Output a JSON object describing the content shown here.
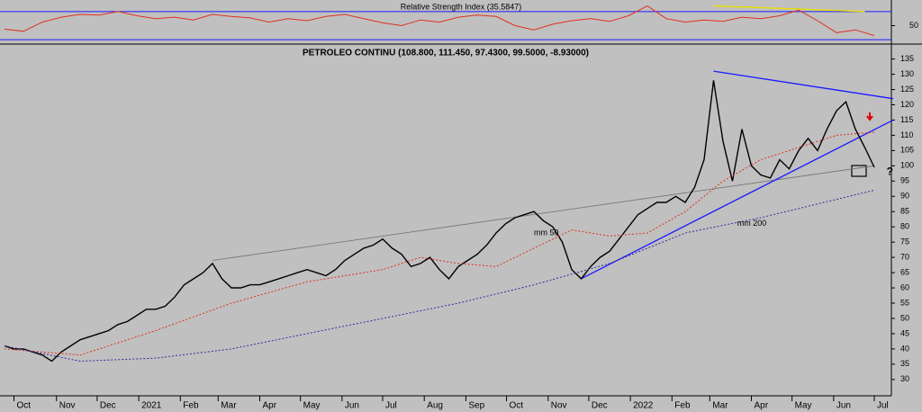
{
  "chart_data": {
    "type": "line",
    "title": "PETROLEO CONTINU (108.800, 111.450, 97.4300, 99.5000, -8.93000)",
    "xlim": [
      0,
      94
    ],
    "xticks": [
      {
        "value": 1,
        "label": "Oct"
      },
      {
        "value": 5.5,
        "label": "Nov"
      },
      {
        "value": 9.8,
        "label": "Dec"
      },
      {
        "value": 14.2,
        "label": "2021"
      },
      {
        "value": 18.6,
        "label": "Feb"
      },
      {
        "value": 22.6,
        "label": "Mar"
      },
      {
        "value": 27,
        "label": "Apr"
      },
      {
        "value": 31.3,
        "label": "May"
      },
      {
        "value": 35.7,
        "label": "Jun"
      },
      {
        "value": 40,
        "label": "Jul"
      },
      {
        "value": 44.4,
        "label": "Aug"
      },
      {
        "value": 48.8,
        "label": "Sep"
      },
      {
        "value": 53.1,
        "label": "Oct"
      },
      {
        "value": 57.5,
        "label": "Nov"
      },
      {
        "value": 61.8,
        "label": "Dec"
      },
      {
        "value": 66.2,
        "label": "2022"
      },
      {
        "value": 70.6,
        "label": "Feb"
      },
      {
        "value": 74.6,
        "label": "Mar"
      },
      {
        "value": 79,
        "label": "Apr"
      },
      {
        "value": 83.3,
        "label": "May"
      },
      {
        "value": 87.7,
        "label": "Jun"
      },
      {
        "value": 92,
        "label": "Jul"
      }
    ],
    "ylim": [
      27,
      139
    ],
    "yticks": [
      30,
      35,
      40,
      45,
      50,
      55,
      60,
      65,
      70,
      75,
      80,
      85,
      90,
      95,
      100,
      105,
      110,
      115,
      120,
      125,
      130,
      135
    ],
    "series": [
      {
        "name": "PETROLEO CONTINU",
        "color": "#000000",
        "style": "solid",
        "x": [
          0,
          1,
          2,
          3,
          4,
          5,
          6,
          7,
          8,
          9,
          10,
          11,
          12,
          13,
          14,
          15,
          16,
          17,
          18,
          19,
          20,
          21,
          22,
          23,
          24,
          25,
          26,
          27,
          28,
          29,
          30,
          31,
          32,
          33,
          34,
          35,
          36,
          37,
          38,
          39,
          40,
          41,
          42,
          43,
          44,
          45,
          46,
          47,
          48,
          49,
          50,
          51,
          52,
          53,
          54,
          55,
          56,
          57,
          58,
          59,
          60,
          61,
          62,
          63,
          64,
          65,
          66,
          67,
          68,
          69,
          70,
          71,
          72,
          73,
          74,
          75,
          76,
          77,
          78,
          79,
          80,
          81,
          82,
          83,
          84,
          85,
          86,
          87,
          88,
          89,
          90,
          91,
          92
        ],
        "values": [
          41,
          40,
          40,
          39,
          38,
          36,
          39,
          41,
          43,
          44,
          45,
          46,
          48,
          49,
          51,
          53,
          53,
          54,
          57,
          61,
          63,
          65,
          68,
          63,
          60,
          60,
          61,
          61,
          62,
          63,
          64,
          65,
          66,
          65,
          64,
          66,
          69,
          71,
          73,
          74,
          76,
          73,
          71,
          67,
          68,
          70,
          66,
          63,
          67,
          69,
          71,
          74,
          78,
          81,
          83,
          84,
          85,
          82,
          80,
          75,
          66,
          63,
          67,
          70,
          72,
          76,
          80,
          84,
          86,
          88,
          88,
          90,
          88,
          93,
          102,
          128,
          108,
          95,
          112,
          100,
          97,
          96,
          102,
          99,
          105,
          109,
          105,
          112,
          118,
          121,
          112,
          106,
          99.5
        ]
      },
      {
        "name": "mm 50",
        "color": "#e03020",
        "style": "dotted",
        "x": [
          0,
          8,
          16,
          24,
          32,
          40,
          44,
          48,
          52,
          56,
          60,
          64,
          68,
          72,
          76,
          80,
          84,
          88,
          92
        ],
        "values": [
          40,
          38,
          46,
          55,
          62,
          66,
          70,
          68,
          67,
          73,
          79,
          77,
          78,
          85,
          95,
          102,
          106,
          110,
          111
        ]
      },
      {
        "name": "mm 200",
        "color": "#3a2a9a",
        "style": "dotted",
        "x": [
          0,
          8,
          16,
          24,
          32,
          40,
          48,
          56,
          64,
          72,
          80,
          88,
          92
        ],
        "values": [
          41,
          36,
          37,
          40,
          45,
          50,
          55,
          61,
          68,
          78,
          83,
          89,
          92
        ]
      }
    ],
    "trendlines": [
      {
        "color": "#707070",
        "x": [
          22,
          92
        ],
        "values": [
          69,
          100
        ]
      },
      {
        "color": "#1a1aff",
        "x": [
          61,
          94
        ],
        "values": [
          63,
          115
        ]
      },
      {
        "color": "#1a1aff",
        "x": [
          75,
          94
        ],
        "values": [
          131,
          122
        ]
      }
    ],
    "annotations": [
      {
        "text": "mm 50",
        "x": 56,
        "y": 78,
        "color": "#e03020"
      },
      {
        "text": "mm 200",
        "x": 77.5,
        "y": 81,
        "color": "#5a2a9a"
      },
      {
        "text": "?",
        "x": 93.3,
        "y": 98,
        "color": "#1a1aff"
      }
    ],
    "rsi": {
      "title": "Relative Strength Index (35.5847)",
      "ylim": [
        20,
        80
      ],
      "yticks": [
        50
      ],
      "levels": [
        70,
        30
      ],
      "color": "#e03020",
      "x": [
        0,
        2,
        4,
        6,
        8,
        10,
        12,
        14,
        16,
        18,
        20,
        22,
        24,
        26,
        28,
        30,
        32,
        34,
        36,
        38,
        40,
        42,
        44,
        46,
        48,
        50,
        52,
        54,
        56,
        58,
        60,
        62,
        64,
        66,
        68,
        70,
        72,
        74,
        76,
        78,
        80,
        82,
        84,
        86,
        88,
        90,
        92
      ],
      "values": [
        45,
        42,
        55,
        62,
        66,
        65,
        70,
        64,
        60,
        62,
        58,
        66,
        63,
        61,
        55,
        60,
        57,
        63,
        66,
        60,
        54,
        50,
        58,
        55,
        62,
        65,
        63,
        50,
        44,
        52,
        57,
        60,
        56,
        64,
        78,
        60,
        55,
        58,
        56,
        62,
        60,
        64,
        72,
        57,
        40,
        44,
        36
      ],
      "trend": {
        "color": "#e8e000",
        "x": [
          75,
          91
        ],
        "values": [
          78,
          70
        ]
      }
    }
  }
}
